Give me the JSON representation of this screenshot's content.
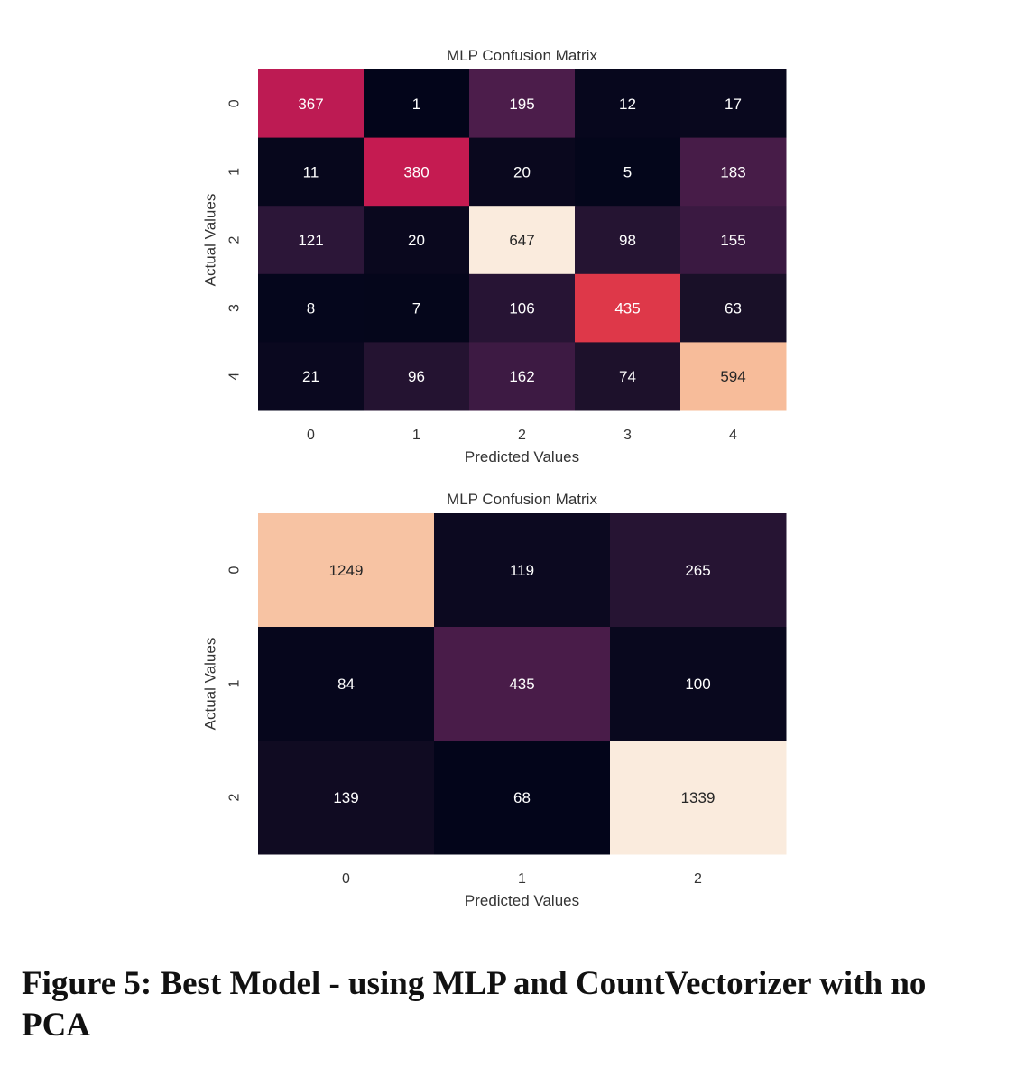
{
  "caption": "Figure 5: Best Model - using MLP and CountVectorizer with no PCA",
  "colors": {
    "colormap": "rocket",
    "light_text": "#ffffff",
    "dark_text": "#262626",
    "axis_text": "#333333"
  },
  "chart_data": [
    {
      "type": "heatmap",
      "title": "MLP Confusion Matrix",
      "xlabel": "Predicted Values",
      "ylabel": "Actual Values",
      "x_ticks": [
        "0",
        "1",
        "2",
        "3",
        "4"
      ],
      "y_ticks": [
        "0",
        "1",
        "2",
        "3",
        "4"
      ],
      "values": [
        [
          367,
          1,
          195,
          12,
          17
        ],
        [
          11,
          380,
          20,
          5,
          183
        ],
        [
          121,
          20,
          647,
          98,
          155
        ],
        [
          8,
          7,
          106,
          435,
          63
        ],
        [
          21,
          96,
          162,
          74,
          594
        ]
      ],
      "colorbar": false
    },
    {
      "type": "heatmap",
      "title": "MLP Confusion Matrix",
      "xlabel": "Predicted Values",
      "ylabel": "Actual Values",
      "x_ticks": [
        "0",
        "1",
        "2"
      ],
      "y_ticks": [
        "0",
        "1",
        "2"
      ],
      "values": [
        [
          1249,
          119,
          265
        ],
        [
          84,
          435,
          100
        ],
        [
          139,
          68,
          1339
        ]
      ],
      "colorbar": false
    }
  ]
}
